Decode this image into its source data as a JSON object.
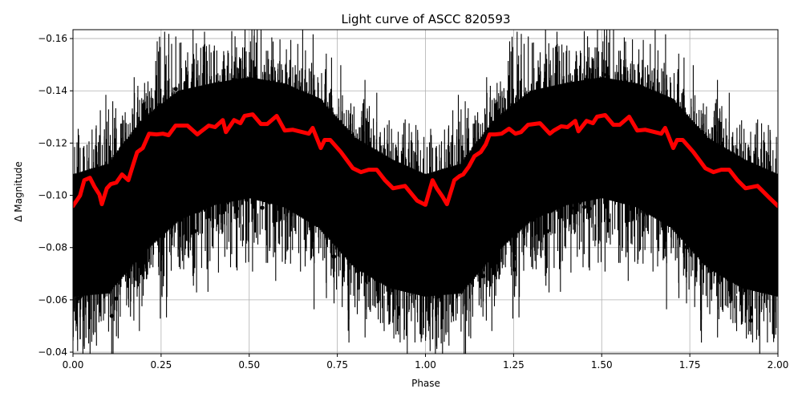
{
  "chart_data": {
    "type": "scatter",
    "title": "Light curve of ASCC 820593",
    "xlabel": "Phase",
    "ylabel": "Δ Magnitude",
    "xlim": [
      0.0,
      2.0
    ],
    "ylim": [
      -0.0394,
      -0.1634
    ],
    "y_inverted": true,
    "grid": true,
    "legend": null,
    "xticks": [
      0.0,
      0.25,
      0.5,
      0.75,
      1.0,
      1.25,
      1.5,
      1.75,
      2.0
    ],
    "xtick_labels": [
      "0.00",
      "0.25",
      "0.50",
      "0.75",
      "1.00",
      "1.25",
      "1.50",
      "1.75",
      "2.00"
    ],
    "yticks": [
      -0.16,
      -0.14,
      -0.12,
      -0.1,
      -0.08,
      -0.06,
      -0.04
    ],
    "ytick_labels": [
      "−0.16",
      "−0.14",
      "−0.12",
      "−0.10",
      "−0.08",
      "−0.06",
      "−0.04"
    ],
    "series": [
      {
        "name": "observations",
        "style": "black points with vertical error bars",
        "color": "#000000",
        "description": "Dense phase-folded photometry; data scatter roughly between -0.04 and -0.165 mag, repeated for phase 0-1 and 1-2",
        "envelope_phase": [
          0.0,
          0.1,
          0.2,
          0.3,
          0.4,
          0.5,
          0.6,
          0.7,
          0.8,
          0.9,
          1.0
        ],
        "envelope_upper": [
          -0.125,
          -0.13,
          -0.148,
          -0.158,
          -0.16,
          -0.162,
          -0.16,
          -0.155,
          -0.14,
          -0.132,
          -0.125
        ],
        "envelope_lower": [
          -0.04,
          -0.04,
          -0.055,
          -0.068,
          -0.075,
          -0.078,
          -0.074,
          -0.065,
          -0.05,
          -0.042,
          -0.04
        ]
      },
      {
        "name": "smoothed model",
        "style": "thick red line",
        "color": "#ff0000",
        "x": [
          0.0,
          0.02,
          0.032,
          0.048,
          0.061,
          0.075,
          0.082,
          0.096,
          0.107,
          0.123,
          0.139,
          0.157,
          0.171,
          0.182,
          0.198,
          0.216,
          0.237,
          0.255,
          0.271,
          0.291,
          0.325,
          0.353,
          0.364,
          0.385,
          0.403,
          0.425,
          0.434,
          0.457,
          0.475,
          0.487,
          0.51,
          0.533,
          0.551,
          0.578,
          0.601,
          0.624,
          0.669,
          0.68,
          0.703,
          0.714,
          0.73,
          0.76,
          0.794,
          0.817,
          0.839,
          0.862,
          0.885,
          0.908,
          0.942,
          0.976,
          0.999,
          1.0,
          1.02,
          1.032,
          1.048,
          1.061,
          1.075,
          1.082,
          1.096,
          1.107,
          1.123,
          1.139,
          1.157,
          1.171,
          1.182,
          1.198,
          1.216,
          1.237,
          1.255,
          1.271,
          1.291,
          1.325,
          1.353,
          1.364,
          1.385,
          1.403,
          1.425,
          1.434,
          1.457,
          1.475,
          1.487,
          1.51,
          1.533,
          1.551,
          1.578,
          1.601,
          1.624,
          1.669,
          1.68,
          1.703,
          1.714,
          1.73,
          1.76,
          1.794,
          1.817,
          1.839,
          1.862,
          1.885,
          1.908,
          1.942,
          1.976,
          2.0
        ],
        "y": [
          -0.0959,
          -0.0999,
          -0.1058,
          -0.1067,
          -0.1033,
          -0.1003,
          -0.0966,
          -0.1027,
          -0.1043,
          -0.1049,
          -0.108,
          -0.1058,
          -0.1119,
          -0.1165,
          -0.1181,
          -0.1236,
          -0.1233,
          -0.1236,
          -0.123,
          -0.1267,
          -0.1267,
          -0.1233,
          -0.1245,
          -0.1267,
          -0.1261,
          -0.1288,
          -0.1242,
          -0.1288,
          -0.1276,
          -0.1304,
          -0.131,
          -0.1273,
          -0.1273,
          -0.1304,
          -0.1248,
          -0.1251,
          -0.1236,
          -0.1258,
          -0.1181,
          -0.1212,
          -0.1212,
          -0.1166,
          -0.1104,
          -0.1089,
          -0.1098,
          -0.1098,
          -0.1058,
          -0.1027,
          -0.1036,
          -0.098,
          -0.0964,
          -0.0964,
          -0.1058,
          -0.1027,
          -0.0996,
          -0.0966,
          -0.1027,
          -0.1058,
          -0.1073,
          -0.108,
          -0.111,
          -0.115,
          -0.1166,
          -0.1195,
          -0.1233,
          -0.1233,
          -0.1236,
          -0.1255,
          -0.1236,
          -0.1242,
          -0.127,
          -0.1276,
          -0.1236,
          -0.1248,
          -0.1264,
          -0.1261,
          -0.1285,
          -0.1245,
          -0.1285,
          -0.1276,
          -0.1301,
          -0.1307,
          -0.127,
          -0.127,
          -0.1301,
          -0.1248,
          -0.1251,
          -0.1236,
          -0.1258,
          -0.1181,
          -0.1212,
          -0.1212,
          -0.1166,
          -0.1104,
          -0.1089,
          -0.1098,
          -0.1098,
          -0.1058,
          -0.1027,
          -0.1036,
          -0.099,
          -0.0959
        ]
      }
    ]
  }
}
